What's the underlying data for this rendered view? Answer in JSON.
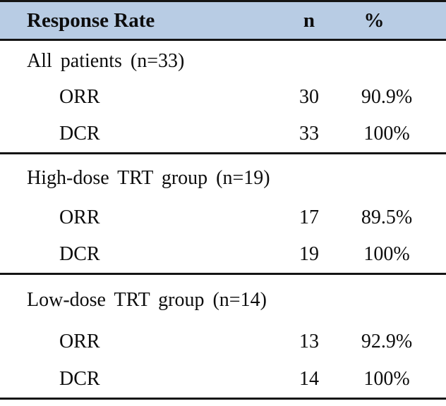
{
  "table": {
    "header": {
      "label": "Response Rate",
      "n": "n",
      "pct": "%"
    },
    "sections": [
      {
        "title": "All patients (n=33)",
        "rows": [
          {
            "label": "ORR",
            "n": "30",
            "pct": "90.9%"
          },
          {
            "label": "DCR",
            "n": "33",
            "pct": "100%"
          }
        ]
      },
      {
        "title": "High-dose TRT group (n=19)",
        "rows": [
          {
            "label": "ORR",
            "n": "17",
            "pct": "89.5%"
          },
          {
            "label": "DCR",
            "n": "19",
            "pct": "100%"
          }
        ]
      },
      {
        "title": "Low-dose TRT group (n=14)",
        "rows": [
          {
            "label": "ORR",
            "n": "13",
            "pct": "92.9%"
          },
          {
            "label": "DCR",
            "n": "14",
            "pct": "100%"
          }
        ]
      }
    ],
    "colors": {
      "header_bg": "#b8cce4",
      "border": "#141414",
      "text": "#0d0d0d"
    }
  },
  "chart_data": {
    "type": "table",
    "title": "Response Rate",
    "columns": [
      "Response Rate",
      "n",
      "%"
    ],
    "groups": [
      {
        "group": "All patients",
        "group_n": 33,
        "rows": [
          {
            "measure": "ORR",
            "n": 30,
            "percent": 90.9
          },
          {
            "measure": "DCR",
            "n": 33,
            "percent": 100
          }
        ]
      },
      {
        "group": "High-dose TRT group",
        "group_n": 19,
        "rows": [
          {
            "measure": "ORR",
            "n": 17,
            "percent": 89.5
          },
          {
            "measure": "DCR",
            "n": 19,
            "percent": 100
          }
        ]
      },
      {
        "group": "Low-dose TRT group",
        "group_n": 14,
        "rows": [
          {
            "measure": "ORR",
            "n": 13,
            "percent": 92.9
          },
          {
            "measure": "DCR",
            "n": 14,
            "percent": 100
          }
        ]
      }
    ]
  }
}
